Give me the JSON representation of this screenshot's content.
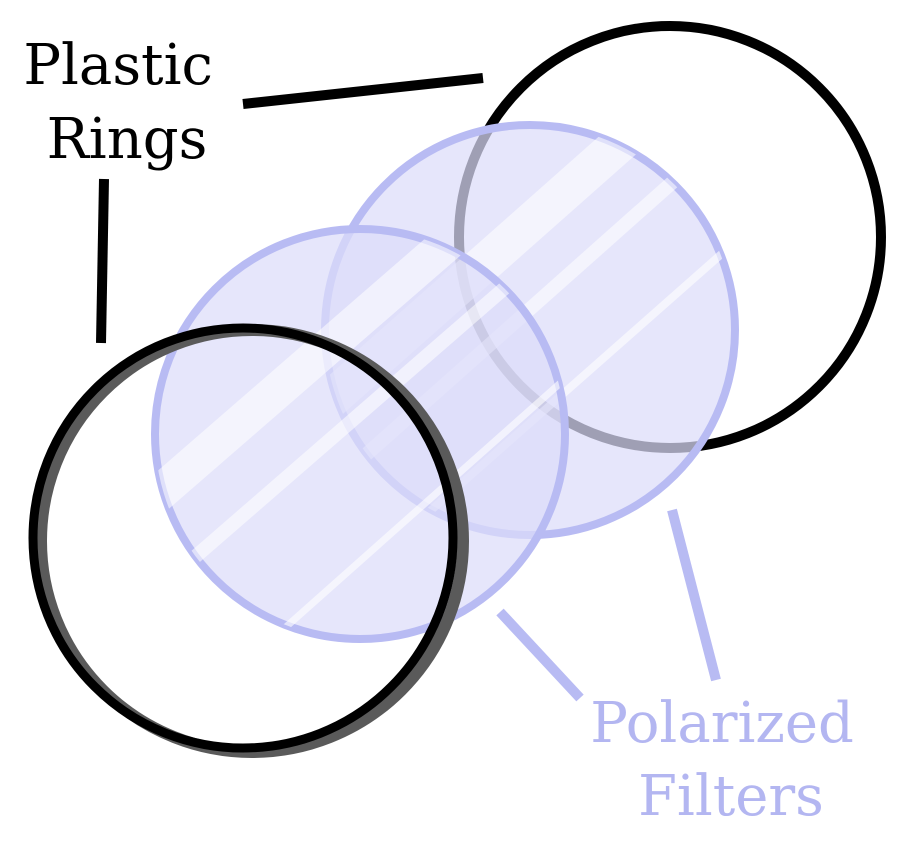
{
  "labels": {
    "plastic_rings": [
      "Plastic",
      "Rings"
    ],
    "polarized_filters": [
      "Polarized",
      "Filters"
    ]
  },
  "colors": {
    "ring": "#000000",
    "ring_shadow": "#5a5a5a",
    "filter_fill": "#dcdcfa",
    "filter_stroke": "#b8bbf3",
    "label_black": "#000000",
    "label_blue": "#b3b6f1",
    "highlight": "#ffffff"
  }
}
